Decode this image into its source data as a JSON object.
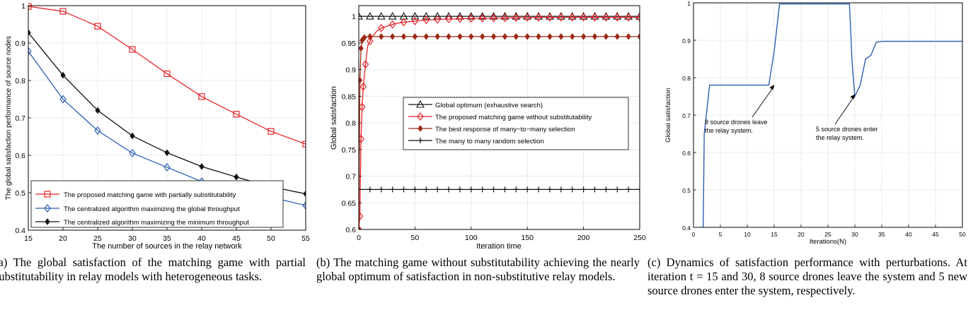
{
  "chart_data": [
    {
      "type": "line",
      "xlabel": "The number of sources in the relay network",
      "ylabel": "The global satisfaction performance of source nodes",
      "xlim": [
        15,
        55
      ],
      "ylim": [
        0.4,
        1
      ],
      "xticks": [
        15,
        20,
        25,
        30,
        35,
        40,
        45,
        50,
        55
      ],
      "yticks": [
        0.4,
        0.5,
        0.6,
        0.7,
        0.8,
        0.9,
        1
      ],
      "ytick_labels": [
        "0.4",
        "0.5",
        "0.6",
        "0.7",
        "0.8",
        "0.9",
        "1"
      ],
      "grid": true,
      "legend_position": "bottom",
      "x": [
        15,
        20,
        25,
        30,
        35,
        40,
        45,
        50,
        55
      ],
      "series": [
        {
          "name": "The proposed matching game with partially substitutability",
          "color": "#e8242a",
          "marker": "square",
          "values": [
            0.998,
            0.985,
            0.945,
            0.883,
            0.818,
            0.757,
            0.71,
            0.664,
            0.63
          ]
        },
        {
          "name": "The centralized algorithm maximizing the global throughput",
          "color": "#2f5fb3",
          "marker": "diamond",
          "values": [
            0.878,
            0.75,
            0.666,
            0.606,
            0.568,
            0.53,
            0.507,
            0.488,
            0.466
          ]
        },
        {
          "name": "The centralized algorithm maximizing the minimum throughput",
          "color": "#111111",
          "marker": "diamond-filled",
          "values": [
            0.928,
            0.814,
            0.72,
            0.652,
            0.607,
            0.57,
            0.542,
            0.516,
            0.497
          ]
        }
      ]
    },
    {
      "type": "line",
      "xlabel": "Iteration time",
      "ylabel": "Global satisfaction",
      "xlim": [
        0,
        250
      ],
      "ylim": [
        0.6,
        1.02
      ],
      "xticks": [
        0,
        50,
        100,
        150,
        200,
        250
      ],
      "yticks": [
        0.6,
        0.65,
        0.7,
        0.75,
        0.8,
        0.85,
        0.9,
        0.95,
        1
      ],
      "ytick_labels": [
        "0.6",
        "0.65",
        "0.7",
        "0.75",
        "0.8",
        "0.85",
        "0.9",
        "0.95",
        "1"
      ],
      "grid": true,
      "legend_position": "center-right",
      "series": [
        {
          "name": "Global optimum (exhaustive search)",
          "color": "#111111",
          "marker": "triangle",
          "x": [
            0,
            250
          ],
          "y": [
            1.0,
            1.0
          ]
        },
        {
          "name": "The proposed matching game without substitutability",
          "color": "#e8242a",
          "marker": "diamond",
          "x": [
            0,
            1,
            2,
            3,
            4,
            6,
            8,
            12,
            16,
            20,
            26,
            32,
            40,
            50,
            60,
            80,
            100,
            130,
            160,
            200,
            250
          ],
          "y": [
            0.6,
            0.625,
            0.77,
            0.83,
            0.868,
            0.91,
            0.945,
            0.962,
            0.972,
            0.978,
            0.982,
            0.986,
            0.989,
            0.991,
            0.993,
            0.995,
            0.996,
            0.997,
            0.998,
            0.998,
            0.998
          ]
        },
        {
          "name": "The best response of many−to−many selection",
          "color": "#9b2a17",
          "marker": "diamond-filled",
          "x": [
            0,
            1,
            2,
            3,
            4,
            5,
            8,
            12,
            250
          ],
          "y": [
            0.6,
            0.88,
            0.94,
            0.955,
            0.958,
            0.96,
            0.962,
            0.962,
            0.962
          ]
        },
        {
          "name": "The many to many random selection",
          "color": "#111111",
          "marker": "plus",
          "x": [
            0,
            250
          ],
          "y": [
            0.675,
            0.675
          ]
        }
      ]
    },
    {
      "type": "line",
      "xlabel": "Iterations(N)",
      "ylabel": "Global satisfaction",
      "xlim": [
        0,
        50
      ],
      "ylim": [
        0.4,
        1
      ],
      "xticks": [
        0,
        5,
        10,
        15,
        20,
        25,
        30,
        35,
        40,
        45,
        50
      ],
      "yticks": [
        0.4,
        0.5,
        0.6,
        0.7,
        0.8,
        0.9,
        1
      ],
      "ytick_labels": [
        "0.4",
        "0.5",
        "0.6",
        "0.7",
        "0.8",
        "0.9",
        "1"
      ],
      "grid": true,
      "series": [
        {
          "color": "#2f5fb3",
          "x": [
            1.8,
            2,
            3,
            14,
            15,
            16,
            29,
            29.5,
            30,
            31,
            32,
            33,
            34,
            35,
            50
          ],
          "y": [
            0.4,
            0.65,
            0.78,
            0.78,
            0.87,
            0.997,
            0.997,
            0.84,
            0.75,
            0.78,
            0.85,
            0.86,
            0.895,
            0.897,
            0.897
          ]
        }
      ],
      "annotations": [
        {
          "text": [
            "8 source drones leave",
            "the relay system."
          ],
          "arrow_to": [
            15,
            0.785
          ]
        },
        {
          "text": [
            "5 source drones enter",
            "the relay system."
          ],
          "arrow_to": [
            30,
            0.76
          ]
        }
      ]
    }
  ],
  "captions": [
    "(a) The global satisfaction of the matching game with partial substitutability in relay models with heterogeneous tasks.",
    "(b) The matching game without substitutability achieving the nearly global optimum of satisfaction in non-substitutive relay models.",
    "(c) Dynamics of satisfaction performance with perturbations. At iteration t = 15 and 30, 8 source drones leave the system and 5 new source drones enter the system, respectively."
  ]
}
